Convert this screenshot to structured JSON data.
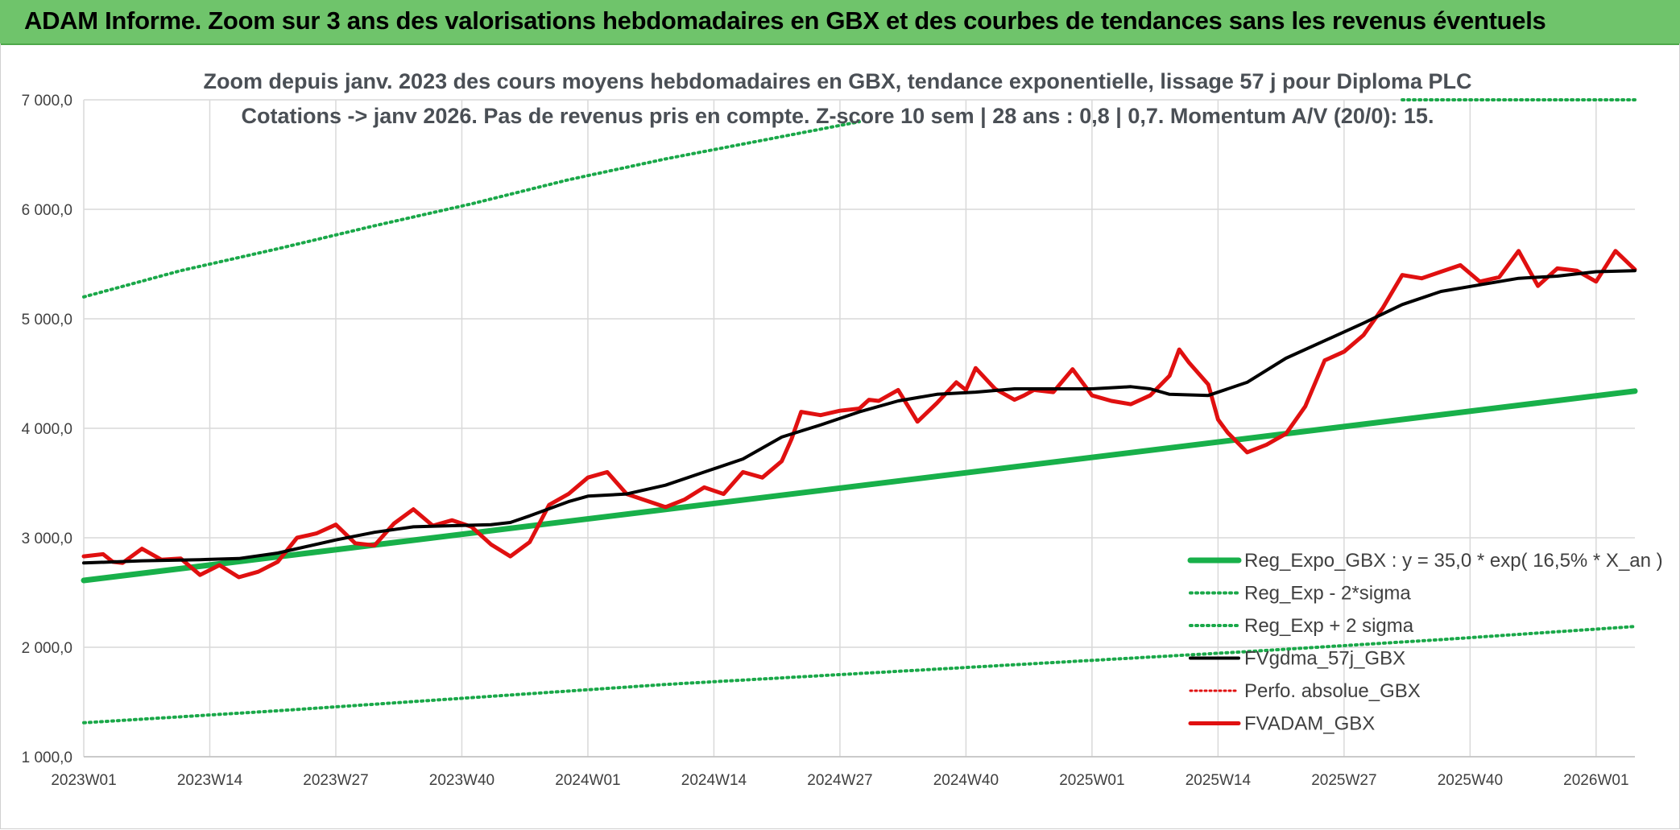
{
  "banner": {
    "title": "ADAM Informe. Zoom sur 3 ans des valorisations hebdomadaires en GBX et des courbes de tendances sans les revenus éventuels"
  },
  "colors": {
    "banner": "#6fc46b",
    "trend": "#18b04a",
    "band": "#1aa849",
    "fvgdma": "#000000",
    "perf": "#e01010",
    "fvadam": "#e01010",
    "grid": "#d9d9d9"
  },
  "chart_data": {
    "type": "line",
    "title": "Zoom depuis janv. 2023 des cours moyens hebdomadaires en GBX, tendance exponentielle, lissage 57 j pour Diploma PLC",
    "subtitle": "Cotations -> janv 2026. Pas de revenus pris en compte. Z-score 10 sem | 28 ans : 0,8 | 0,7. Momentum A/V (20/0): 15.",
    "xlabel": "",
    "ylabel": "",
    "ylim": [
      1000,
      7000
    ],
    "grid": true,
    "legend_position": "bottom-right",
    "y_ticks": [
      "1 000,0",
      "2 000,0",
      "3 000,0",
      "4 000,0",
      "5 000,0",
      "6 000,0",
      "7 000,0"
    ],
    "x_tick_labels": [
      "2023W01",
      "2023W14",
      "2023W27",
      "2023W40",
      "2024W01",
      "2024W14",
      "2024W27",
      "2024W40",
      "2025W01",
      "2025W14",
      "2025W27",
      "2025W40",
      "2026W01"
    ],
    "x_tick_weeks": [
      0,
      13,
      26,
      39,
      52,
      65,
      78,
      91,
      104,
      117,
      130,
      143,
      156
    ],
    "x_range": [
      0,
      160
    ],
    "series": [
      {
        "name": "Reg_Expo_GBX : y = 35,0 * exp( 16,5% *  X_an )",
        "style": "solid-thick",
        "x": [
          0,
          160
        ],
        "y": [
          2610,
          4340
        ]
      },
      {
        "name": "Reg_Exp - 2*sigma",
        "style": "dotted",
        "x": [
          0,
          20,
          40,
          60,
          80,
          100,
          120,
          140,
          160
        ],
        "y": [
          1310,
          1420,
          1540,
          1660,
          1760,
          1860,
          1960,
          2070,
          2190
        ]
      },
      {
        "name": "Reg_Exp + 2 sigma",
        "style": "dotted",
        "x": [
          0,
          10,
          20,
          30,
          40,
          50,
          60,
          70,
          80
        ],
        "y": [
          5200,
          5440,
          5640,
          5850,
          6050,
          6270,
          6460,
          6630,
          6800
        ],
        "x_clipped": [
          136,
          160
        ],
        "y_clipped": [
          7000,
          7000
        ]
      },
      {
        "name": "FVgdma_57j_GBX",
        "style": "solid",
        "x": [
          0,
          6,
          12,
          16,
          20,
          26,
          30,
          34,
          38,
          42,
          44,
          46,
          50,
          52,
          56,
          60,
          64,
          68,
          70,
          72,
          76,
          80,
          84,
          88,
          92,
          96,
          100,
          104,
          108,
          110,
          112,
          116,
          120,
          124,
          128,
          132,
          136,
          140,
          144,
          148,
          152,
          156,
          160
        ],
        "y": [
          2770,
          2790,
          2800,
          2810,
          2860,
          2980,
          3050,
          3100,
          3110,
          3120,
          3140,
          3200,
          3330,
          3380,
          3400,
          3480,
          3600,
          3720,
          3820,
          3920,
          4030,
          4150,
          4250,
          4310,
          4330,
          4360,
          4360,
          4360,
          4380,
          4360,
          4310,
          4300,
          4420,
          4640,
          4800,
          4960,
          5130,
          5250,
          5310,
          5370,
          5390,
          5430,
          5440
        ]
      },
      {
        "name": "Perfo. absolue_GBX",
        "style": "dotted-red",
        "x": [],
        "y": []
      },
      {
        "name": "FVADAM_GBX",
        "style": "solid-thick",
        "x": [
          0,
          2,
          3,
          4,
          6,
          8,
          10,
          12,
          14,
          16,
          18,
          20,
          22,
          24,
          26,
          28,
          30,
          32,
          34,
          36,
          38,
          40,
          42,
          44,
          46,
          48,
          50,
          52,
          54,
          56,
          58,
          60,
          62,
          64,
          66,
          68,
          70,
          72,
          73,
          74,
          76,
          78,
          80,
          81,
          82,
          84,
          86,
          88,
          90,
          91,
          92,
          94,
          96,
          97,
          98,
          100,
          102,
          104,
          106,
          108,
          110,
          112,
          113,
          114,
          116,
          117,
          118,
          120,
          122,
          123,
          124,
          126,
          128,
          130,
          132,
          134,
          136,
          138,
          140,
          142,
          144,
          146,
          148,
          150,
          152,
          154,
          156,
          158,
          160
        ],
        "y": [
          2830,
          2850,
          2780,
          2770,
          2900,
          2800,
          2810,
          2660,
          2750,
          2640,
          2690,
          2780,
          3000,
          3040,
          3120,
          2950,
          2930,
          3130,
          3260,
          3110,
          3160,
          3100,
          2940,
          2830,
          2960,
          3300,
          3400,
          3550,
          3600,
          3400,
          3340,
          3280,
          3350,
          3460,
          3400,
          3600,
          3550,
          3700,
          3900,
          4150,
          4120,
          4160,
          4180,
          4260,
          4250,
          4350,
          4060,
          4230,
          4420,
          4350,
          4550,
          4360,
          4260,
          4300,
          4350,
          4330,
          4540,
          4300,
          4250,
          4220,
          4300,
          4480,
          4720,
          4600,
          4400,
          4080,
          3960,
          3780,
          3850,
          3900,
          3950,
          4200,
          4620,
          4700,
          4850,
          5100,
          5400,
          5370,
          5430,
          5490,
          5340,
          5380,
          5620,
          5300,
          5460,
          5440,
          5340,
          5620,
          5450
        ]
      }
    ]
  }
}
